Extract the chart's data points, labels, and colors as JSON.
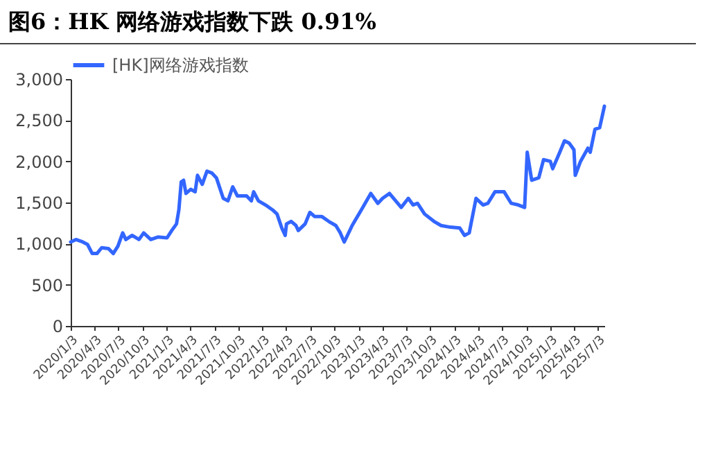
{
  "chart_data": {
    "type": "line",
    "title": "图6：HK 网络游戏指数下跌 0.91%",
    "legend": "top",
    "grid": false,
    "marker": "none",
    "line_style": "solid",
    "xlim": [
      "2020-01-03",
      "2025-07-28"
    ],
    "xticks": [
      {
        "value": "2020-01-03",
        "label": "2020/1/3"
      },
      {
        "value": "2020-04-03",
        "label": "2020/4/3"
      },
      {
        "value": "2020-07-03",
        "label": "2020/7/3"
      },
      {
        "value": "2020-10-03",
        "label": "2020/10/3"
      },
      {
        "value": "2021-01-03",
        "label": "2021/1/3"
      },
      {
        "value": "2021-04-03",
        "label": "2021/4/3"
      },
      {
        "value": "2021-07-03",
        "label": "2021/7/3"
      },
      {
        "value": "2021-10-03",
        "label": "2021/10/3"
      },
      {
        "value": "2022-01-03",
        "label": "2022/1/3"
      },
      {
        "value": "2022-04-03",
        "label": "2022/4/3"
      },
      {
        "value": "2022-07-03",
        "label": "2022/7/3"
      },
      {
        "value": "2022-10-03",
        "label": "2022/10/3"
      },
      {
        "value": "2023-01-03",
        "label": "2023/1/3"
      },
      {
        "value": "2023-04-03",
        "label": "2023/4/3"
      },
      {
        "value": "2023-07-03",
        "label": "2023/7/3"
      },
      {
        "value": "2023-10-03",
        "label": "2023/10/3"
      },
      {
        "value": "2024-01-03",
        "label": "2024/1/3"
      },
      {
        "value": "2024-04-03",
        "label": "2024/4/3"
      },
      {
        "value": "2024-07-03",
        "label": "2024/7/3"
      },
      {
        "value": "2024-10-03",
        "label": "2024/10/3"
      },
      {
        "value": "2025-01-03",
        "label": "2025/1/3"
      },
      {
        "value": "2025-04-03",
        "label": "2025/4/3"
      },
      {
        "value": "2025-07-03",
        "label": "2025/7/3"
      }
    ],
    "ylim": [
      0,
      3000
    ],
    "yticks": [
      0,
      500,
      {
        "value": 1000,
        "label": "1,000"
      },
      {
        "value": 1500,
        "label": "1,500"
      },
      {
        "value": 2000,
        "label": "2,000"
      },
      {
        "value": 2500,
        "label": "2,500"
      },
      {
        "value": 3000,
        "label": "3,000"
      }
    ],
    "series": [
      {
        "name": "[HK]网络游戏指数",
        "color": "#3366ff",
        "x": [
          "2020-01-03",
          "2020-01-23",
          "2020-02-18",
          "2020-03-07",
          "2020-03-25",
          "2020-04-12",
          "2020-04-30",
          "2020-05-26",
          "2020-06-13",
          "2020-07-01",
          "2020-07-19",
          "2020-07-31",
          "2020-08-24",
          "2020-09-19",
          "2020-10-07",
          "2020-11-03",
          "2020-11-30",
          "2021-01-04",
          "2021-01-22",
          "2021-02-09",
          "2021-02-18",
          "2021-02-27",
          "2021-03-08",
          "2021-03-17",
          "2021-04-04",
          "2021-04-21",
          "2021-04-30",
          "2021-05-18",
          "2021-06-05",
          "2021-06-23",
          "2021-07-11",
          "2021-08-06",
          "2021-08-24",
          "2021-09-11",
          "2021-09-29",
          "2021-11-03",
          "2021-11-21",
          "2021-11-30",
          "2021-12-18",
          "2022-01-14",
          "2022-02-10",
          "2022-02-27",
          "2022-03-17",
          "2022-03-30",
          "2022-04-04",
          "2022-04-22",
          "2022-05-10",
          "2022-05-19",
          "2022-06-14",
          "2022-07-02",
          "2022-07-20",
          "2022-08-16",
          "2022-09-12",
          "2022-10-09",
          "2022-10-26",
          "2022-11-10",
          "2022-11-22",
          "2022-12-10",
          "2023-01-14",
          "2023-02-19",
          "2023-03-18",
          "2023-04-05",
          "2023-05-01",
          "2023-06-15",
          "2023-07-12",
          "2023-07-30",
          "2023-08-16",
          "2023-09-12",
          "2023-10-18",
          "2023-11-14",
          "2023-12-19",
          "2024-01-24",
          "2024-02-11",
          "2024-02-29",
          "2024-03-26",
          "2024-04-22",
          "2024-05-10",
          "2024-06-06",
          "2024-07-11",
          "2024-08-07",
          "2024-09-03",
          "2024-09-27",
          "2024-10-07",
          "2024-10-24",
          "2024-11-20",
          "2024-12-08",
          "2025-01-03",
          "2025-01-12",
          "2025-02-08",
          "2025-02-26",
          "2025-03-16",
          "2025-04-03",
          "2025-04-08",
          "2025-04-28",
          "2025-05-26",
          "2025-06-04",
          "2025-06-22",
          "2025-07-10",
          "2025-07-28"
        ],
        "values": [
          1020,
          1050,
          1020,
          990,
          880,
          880,
          950,
          940,
          880,
          970,
          1130,
          1050,
          1100,
          1050,
          1130,
          1050,
          1080,
          1070,
          1160,
          1240,
          1410,
          1750,
          1770,
          1610,
          1660,
          1630,
          1830,
          1720,
          1880,
          1860,
          1800,
          1550,
          1520,
          1690,
          1580,
          1580,
          1520,
          1630,
          1520,
          1470,
          1410,
          1360,
          1190,
          1100,
          1240,
          1270,
          1220,
          1160,
          1240,
          1380,
          1330,
          1330,
          1270,
          1220,
          1130,
          1020,
          1100,
          1220,
          1410,
          1610,
          1490,
          1550,
          1610,
          1440,
          1550,
          1470,
          1490,
          1360,
          1270,
          1220,
          1200,
          1190,
          1100,
          1130,
          1550,
          1470,
          1490,
          1630,
          1630,
          1490,
          1470,
          1440,
          2110,
          1770,
          1800,
          2020,
          2000,
          1910,
          2110,
          2250,
          2220,
          2140,
          1830,
          2000,
          2160,
          2110,
          2390,
          2410,
          2670
        ]
      }
    ]
  }
}
